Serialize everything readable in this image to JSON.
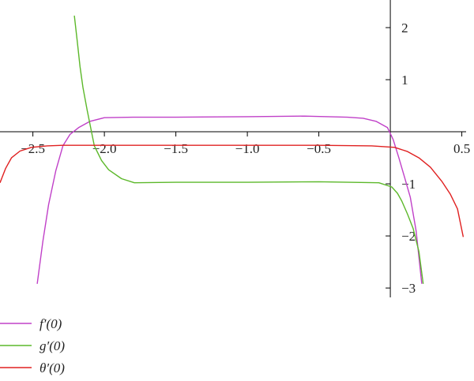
{
  "chart_data": {
    "type": "line",
    "xlim": [
      -2.73,
      0.53
    ],
    "ylim": [
      -3.18,
      2.53
    ],
    "xticks": [
      {
        "value": -2.5,
        "label": "−2.5"
      },
      {
        "value": -2,
        "label": "−2.0"
      },
      {
        "value": -1.5,
        "label": "−1.5"
      },
      {
        "value": -1,
        "label": "−1.0"
      },
      {
        "value": -0.5,
        "label": "−0.5"
      },
      0.5
    ],
    "yticks": [
      {
        "value": -3,
        "label": "−3"
      },
      {
        "value": -2,
        "label": "−2"
      },
      {
        "value": -1,
        "label": "−1"
      },
      1,
      2
    ],
    "legend": "below",
    "series": [
      {
        "name": "f′(0)",
        "color": "#c040c8",
        "x": [
          -2.47,
          -2.43,
          -2.39,
          -2.34,
          -2.29,
          -2.24,
          -2.18,
          -2.1,
          -2.0,
          -1.8,
          -1.5,
          -1.0,
          -0.6,
          -0.3,
          -0.19,
          -0.1,
          -0.02,
          0.02,
          0.06,
          0.1,
          0.14,
          0.18,
          0.22
        ],
        "values": [
          -2.92,
          -2.1,
          -1.4,
          -0.75,
          -0.27,
          -0.05,
          0.08,
          0.2,
          0.27,
          0.28,
          0.28,
          0.29,
          0.3,
          0.28,
          0.26,
          0.2,
          0.08,
          -0.15,
          -0.5,
          -0.88,
          -1.26,
          -1.9,
          -2.92
        ]
      },
      {
        "name": "g′(0)",
        "color": "#5cb82a",
        "x": [
          -2.21,
          -2.19,
          -2.17,
          -2.15,
          -2.12,
          -2.09,
          -2.07,
          -2.02,
          -1.97,
          -1.88,
          -1.79,
          -1.5,
          -1.0,
          -0.5,
          -0.08,
          0.01,
          0.05,
          0.08,
          0.12,
          0.16,
          0.2,
          0.23
        ],
        "values": [
          2.23,
          1.75,
          1.25,
          0.85,
          0.41,
          0.0,
          -0.27,
          -0.55,
          -0.73,
          -0.9,
          -0.98,
          -0.97,
          -0.97,
          -0.96,
          -0.98,
          -1.06,
          -1.18,
          -1.33,
          -1.58,
          -1.86,
          -2.3,
          -2.92
        ]
      },
      {
        "name": "θ′(0)",
        "color": "#e02020",
        "x": [
          -2.73,
          -2.69,
          -2.65,
          -2.59,
          -2.51,
          -2.4,
          -2.29,
          -1.5,
          -0.5,
          -0.13,
          0.03,
          0.12,
          0.2,
          0.28,
          0.36,
          0.42,
          0.47,
          0.51
        ],
        "values": [
          -0.98,
          -0.7,
          -0.5,
          -0.37,
          -0.3,
          -0.27,
          -0.26,
          -0.26,
          -0.26,
          -0.27,
          -0.3,
          -0.38,
          -0.5,
          -0.68,
          -0.95,
          -1.2,
          -1.48,
          -2.02
        ]
      }
    ]
  }
}
